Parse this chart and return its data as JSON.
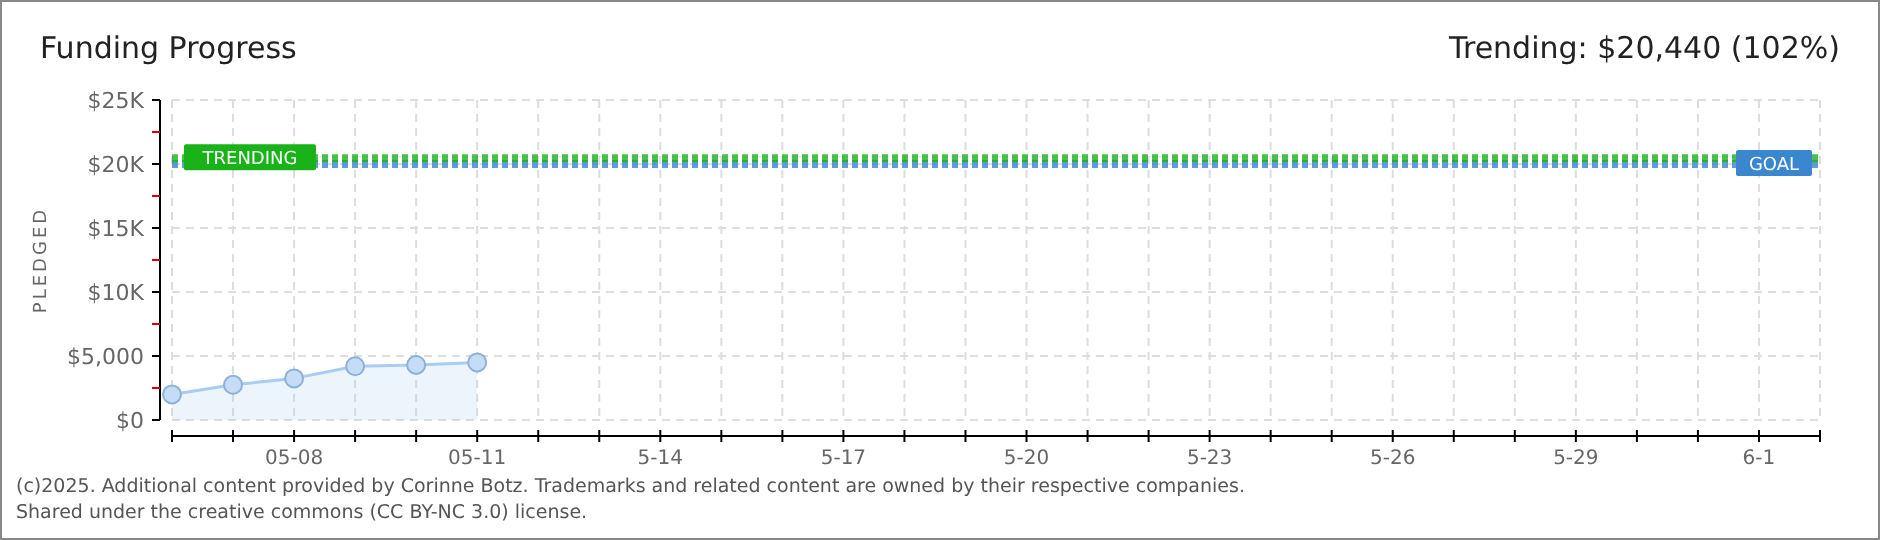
{
  "chart_data": {
    "type": "area",
    "title": "Funding Progress",
    "subtitle": "Trending: $20,440 (102%)",
    "ylabel": "PLEDGED",
    "annotations": [
      "(c)2025. Additional content provided by Corinne Botz. Trademarks and related content are owned by their respective companies.",
      "Shared under the creative commons (CC BY-NC 3.0) license."
    ],
    "x": [
      "--05-06",
      "--05-07",
      "--05-08",
      "--05-09",
      "--05-10",
      "--05-11"
    ],
    "series": [
      {
        "color": "#a9cdf2",
        "values": [
          2000,
          2750,
          3250,
          4200,
          4300,
          4500
        ]
      }
    ],
    "xlim": [
      "--05-06",
      "--06-02"
    ],
    "xticks": [
      {
        "value": "--05-06",
        "label": null
      },
      {
        "value": "--05-07",
        "label": null
      },
      {
        "value": "--05-08",
        "label": "05-08"
      },
      {
        "value": "--05-09",
        "label": null
      },
      {
        "value": "--05-10",
        "label": null
      },
      {
        "value": "--05-11",
        "label": "05-11"
      },
      {
        "value": "--05-12",
        "label": null
      },
      {
        "value": "--05-13",
        "label": null
      },
      {
        "value": "--05-14",
        "label": "5-14"
      },
      {
        "value": "--05-15",
        "label": null
      },
      {
        "value": "--05-16",
        "label": null
      },
      {
        "value": "--05-17",
        "label": "5-17"
      },
      {
        "value": "--05-18",
        "label": null
      },
      {
        "value": "--05-19",
        "label": null
      },
      {
        "value": "--05-20",
        "label": "5-20"
      },
      {
        "value": "--05-21",
        "label": null
      },
      {
        "value": "--05-22",
        "label": null
      },
      {
        "value": "--05-23",
        "label": "5-23"
      },
      {
        "value": "--05-24",
        "label": null
      },
      {
        "value": "--05-25",
        "label": null
      },
      {
        "value": "--05-26",
        "label": "5-26"
      },
      {
        "value": "--05-27",
        "label": null
      },
      {
        "value": "--05-28",
        "label": null
      },
      {
        "value": "--05-29",
        "label": "5-29"
      },
      {
        "value": "--05-30",
        "label": null
      },
      {
        "value": "--05-31",
        "label": null
      },
      {
        "value": "--06-01",
        "label": "6-1"
      },
      {
        "value": "--06-02",
        "label": null
      }
    ],
    "ylim": [
      0,
      25000
    ],
    "yticks": [
      {
        "value": 0,
        "label": "$0"
      },
      {
        "value": 2500,
        "label": null
      },
      {
        "value": 5000,
        "label": "$5,000"
      },
      {
        "value": 7500,
        "label": null
      },
      {
        "value": 10000,
        "label": "$10K"
      },
      {
        "value": 12500,
        "label": null
      },
      {
        "value": 15000,
        "label": "$15K"
      },
      {
        "value": 17500,
        "label": null
      },
      {
        "value": 20000,
        "label": "$20K"
      },
      {
        "value": 22500,
        "label": null
      },
      {
        "value": 25000,
        "label": "$25K"
      }
    ],
    "ref_lines": [
      {
        "axis": "y",
        "value": 20000,
        "label": "GOAL",
        "color": "#3a87d0",
        "line_style": "dotted"
      },
      {
        "axis": "y",
        "value": 20440,
        "label": "TRENDING",
        "color": "#19b319",
        "line_style": "dotted"
      }
    ],
    "grid": true,
    "marker": "circle",
    "line_style": "solid"
  }
}
